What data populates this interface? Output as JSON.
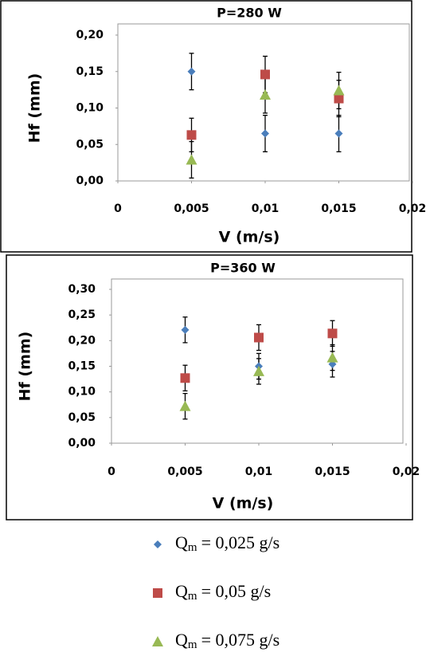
{
  "chart_data": [
    {
      "type": "scatter",
      "title": "P=280 W",
      "x_label": "V (m/s)",
      "y_label": "Hf (mm)",
      "x": [
        0.005,
        0.01,
        0.015
      ],
      "xlim": [
        0,
        0.02
      ],
      "xticks": [
        0,
        {
          "value": 0.005,
          "label": "0,005"
        },
        {
          "value": 0.01,
          "label": "0,01"
        },
        {
          "value": 0.015,
          "label": "0,015"
        },
        {
          "value": 0.02,
          "label": "0,02"
        }
      ],
      "ylim": [
        0,
        0.2
      ],
      "yticks": [
        {
          "value": 0,
          "label": "0,00"
        },
        {
          "value": 0.05,
          "label": "0,05"
        },
        {
          "value": 0.1,
          "label": "0,10"
        },
        {
          "value": 0.15,
          "label": "0,15"
        },
        {
          "value": 0.2,
          "label": "0,20"
        }
      ],
      "series": [
        {
          "color": "#4a7ebb",
          "marker": "diamond",
          "values": [
            0.15,
            0.065,
            0.065
          ],
          "errors": [
            0.025,
            0.025,
            0.025
          ]
        },
        {
          "color": "#be4b48",
          "marker": "square",
          "values": [
            0.063,
            0.146,
            0.113
          ],
          "errors": [
            0.023,
            0.025,
            0.025
          ]
        },
        {
          "color": "#98b954",
          "marker": "triangle",
          "values": [
            0.029,
            0.118,
            0.124
          ],
          "errors": [
            0.025,
            0.025,
            0.025
          ]
        }
      ]
    },
    {
      "type": "scatter",
      "title": "P=360 W",
      "x_label": "V (m/s)",
      "y_label": "Hf (mm)",
      "x": [
        0.005,
        0.01,
        0.015
      ],
      "xlim": [
        0,
        0.02
      ],
      "xticks": [
        0,
        {
          "value": 0.005,
          "label": "0,005"
        },
        {
          "value": 0.01,
          "label": "0,01"
        },
        {
          "value": 0.015,
          "label": "0,015"
        },
        {
          "value": 0.02,
          "label": "0,02"
        }
      ],
      "ylim": [
        0,
        0.3
      ],
      "yticks": [
        {
          "value": 0,
          "label": "0,00"
        },
        {
          "value": 0.05,
          "label": "0,05"
        },
        {
          "value": 0.1,
          "label": "0,10"
        },
        {
          "value": 0.15,
          "label": "0,15"
        },
        {
          "value": 0.2,
          "label": "0,20"
        },
        {
          "value": 0.25,
          "label": "0,25"
        },
        {
          "value": 0.3,
          "label": "0,30"
        }
      ],
      "series": [
        {
          "color": "#4a7ebb",
          "marker": "diamond",
          "values": [
            0.221,
            0.15,
            0.154
          ],
          "errors": [
            0.025,
            0.025,
            0.025
          ]
        },
        {
          "color": "#be4b48",
          "marker": "square",
          "values": [
            0.127,
            0.206,
            0.214
          ],
          "errors": [
            0.025,
            0.025,
            0.025
          ]
        },
        {
          "color": "#98b954",
          "marker": "triangle",
          "values": [
            0.072,
            0.14,
            0.167
          ],
          "errors": [
            0.025,
            0.025,
            0.025
          ]
        }
      ]
    }
  ],
  "legend": {
    "entries": [
      {
        "symbol": "Q",
        "subscript": "m",
        "label": "= 0,025 g/s"
      },
      {
        "symbol": "Q",
        "subscript": "m",
        "label": "= 0,05 g/s"
      },
      {
        "symbol": "Q",
        "subscript": "m",
        "label": "= 0,075 g/s"
      }
    ]
  }
}
